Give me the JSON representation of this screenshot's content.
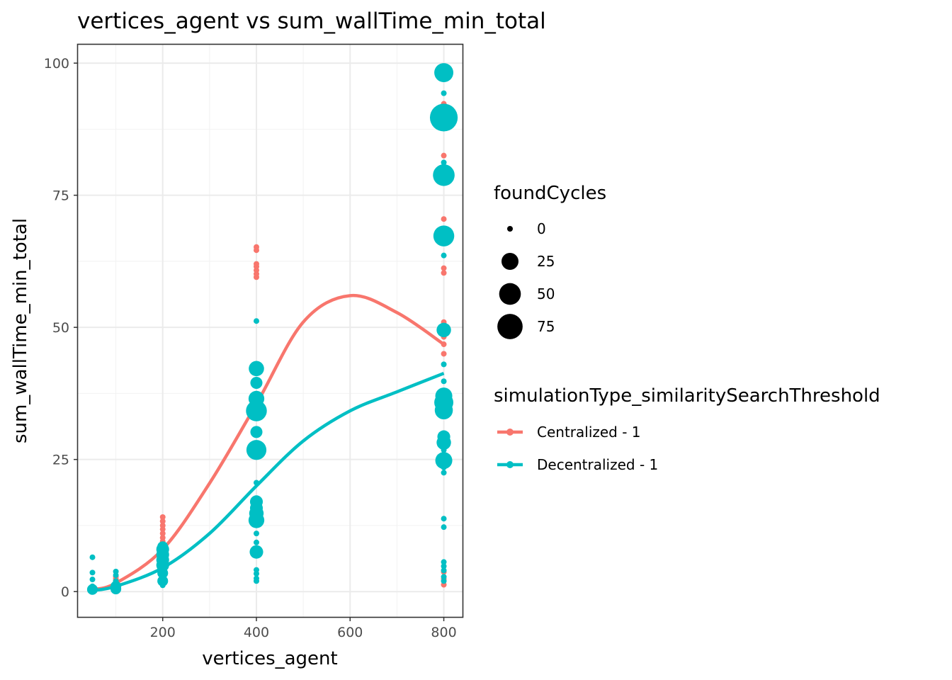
{
  "chart_data": {
    "type": "scatter",
    "title": "vertices_agent  vs  sum_wallTime_min_total",
    "xlabel": "vertices_agent",
    "ylabel": "sum_wallTime_min_total",
    "xlim": [
      19,
      840
    ],
    "ylim": [
      -4.8,
      103.5
    ],
    "x_ticks": [
      200,
      400,
      600,
      800
    ],
    "y_ticks": [
      0,
      25,
      50,
      75,
      100
    ],
    "grid": true,
    "legend_position": "right",
    "size_legend": {
      "title": "foundCycles",
      "entries": [
        {
          "label": "0",
          "value": 0
        },
        {
          "label": "25",
          "value": 25
        },
        {
          "label": "50",
          "value": 50
        },
        {
          "label": "75",
          "value": 75
        }
      ]
    },
    "color_legend": {
      "title": "simulationType_similaritySearchThreshold",
      "entries": [
        "Centralized - 1",
        "Decentralized - 1"
      ]
    },
    "series": [
      {
        "name": "Centralized - 1",
        "color": "#F8766D",
        "points": [
          [
            50,
            0.3,
            0
          ],
          [
            50,
            0.6,
            0
          ],
          [
            50,
            0.9,
            0
          ],
          [
            100,
            1.2,
            0
          ],
          [
            100,
            1.6,
            0
          ],
          [
            100,
            2.0,
            0
          ],
          [
            100,
            2.4,
            0
          ],
          [
            100,
            2.8,
            0
          ],
          [
            200,
            8.0,
            0
          ],
          [
            200,
            8.8,
            0
          ],
          [
            200,
            9.5,
            0
          ],
          [
            200,
            10.2,
            0
          ],
          [
            200,
            11.0,
            0
          ],
          [
            200,
            11.8,
            0
          ],
          [
            200,
            12.5,
            0
          ],
          [
            200,
            13.3,
            0
          ],
          [
            200,
            14.1,
            0
          ],
          [
            400,
            13.1,
            0
          ],
          [
            400,
            59.5,
            0
          ],
          [
            400,
            60.1,
            0
          ],
          [
            400,
            60.8,
            0
          ],
          [
            400,
            61.5,
            0
          ],
          [
            400,
            62.0,
            0
          ],
          [
            400,
            64.6,
            0
          ],
          [
            400,
            65.2,
            0
          ],
          [
            800,
            1.3,
            0
          ],
          [
            800,
            2.4,
            0
          ],
          [
            800,
            3.7,
            0
          ],
          [
            800,
            45.0,
            0
          ],
          [
            800,
            46.8,
            0
          ],
          [
            800,
            48.2,
            0
          ],
          [
            800,
            50.0,
            0
          ],
          [
            800,
            51.0,
            0
          ],
          [
            800,
            60.3,
            0
          ],
          [
            800,
            61.2,
            0
          ],
          [
            800,
            70.5,
            0
          ],
          [
            800,
            82.5,
            0
          ],
          [
            800,
            92.3,
            0
          ]
        ],
        "smooth_line": [
          [
            50,
            0.4
          ],
          [
            100,
            1.6
          ],
          [
            200,
            8.0
          ],
          [
            300,
            20.5
          ],
          [
            400,
            35.5
          ],
          [
            500,
            51.0
          ],
          [
            600,
            56.0
          ],
          [
            700,
            52.8
          ],
          [
            800,
            46.8
          ]
        ]
      },
      {
        "name": "Decentralized - 1",
        "color": "#00BFC4",
        "points": [
          [
            50,
            0.1,
            0
          ],
          [
            50,
            0.4,
            5
          ],
          [
            50,
            1.0,
            0
          ],
          [
            50,
            2.3,
            0
          ],
          [
            50,
            3.6,
            0
          ],
          [
            50,
            6.5,
            0
          ],
          [
            100,
            0.5,
            5
          ],
          [
            100,
            1.0,
            5
          ],
          [
            100,
            2.0,
            0
          ],
          [
            100,
            3.1,
            0
          ],
          [
            100,
            3.8,
            0
          ],
          [
            200,
            1.2,
            0
          ],
          [
            200,
            2.0,
            5
          ],
          [
            200,
            3.5,
            5
          ],
          [
            200,
            5.0,
            10
          ],
          [
            200,
            6.0,
            10
          ],
          [
            200,
            7.0,
            10
          ],
          [
            200,
            8.0,
            10
          ],
          [
            200,
            8.5,
            5
          ],
          [
            400,
            2.0,
            0
          ],
          [
            400,
            2.5,
            0
          ],
          [
            400,
            3.4,
            0
          ],
          [
            400,
            4.1,
            0
          ],
          [
            400,
            7.5,
            12
          ],
          [
            400,
            9.3,
            0
          ],
          [
            400,
            11.0,
            0
          ],
          [
            400,
            13.5,
            20
          ],
          [
            400,
            14.8,
            15
          ],
          [
            400,
            15.8,
            10
          ],
          [
            400,
            17.0,
            10
          ],
          [
            400,
            20.6,
            0
          ],
          [
            400,
            26.8,
            40
          ],
          [
            400,
            30.2,
            8
          ],
          [
            400,
            34.2,
            45
          ],
          [
            400,
            36.5,
            20
          ],
          [
            400,
            39.5,
            8
          ],
          [
            400,
            42.2,
            18
          ],
          [
            400,
            51.2,
            0
          ],
          [
            800,
            2.0,
            0
          ],
          [
            800,
            2.8,
            0
          ],
          [
            800,
            4.0,
            0
          ],
          [
            800,
            4.8,
            0
          ],
          [
            800,
            5.6,
            0
          ],
          [
            800,
            12.2,
            0
          ],
          [
            800,
            13.8,
            0
          ],
          [
            800,
            22.5,
            0
          ],
          [
            800,
            23.5,
            0
          ],
          [
            800,
            24.8,
            25
          ],
          [
            800,
            26.8,
            0
          ],
          [
            800,
            28.2,
            15
          ],
          [
            800,
            29.3,
            10
          ],
          [
            800,
            34.3,
            30
          ],
          [
            800,
            35.8,
            35
          ],
          [
            800,
            37.0,
            25
          ],
          [
            800,
            39.8,
            0
          ],
          [
            800,
            43.0,
            0
          ],
          [
            800,
            49.5,
            15
          ],
          [
            800,
            63.6,
            0
          ],
          [
            800,
            67.3,
            45
          ],
          [
            800,
            78.8,
            50
          ],
          [
            800,
            81.2,
            0
          ],
          [
            800,
            89.7,
            95
          ],
          [
            800,
            94.3,
            0
          ],
          [
            800,
            98.2,
            35
          ]
        ],
        "smooth_line": [
          [
            50,
            0.2
          ],
          [
            100,
            1.0
          ],
          [
            200,
            4.5
          ],
          [
            300,
            11.0
          ],
          [
            400,
            20.0
          ],
          [
            500,
            28.5
          ],
          [
            600,
            34.2
          ],
          [
            700,
            37.8
          ],
          [
            800,
            41.3
          ]
        ]
      }
    ]
  }
}
